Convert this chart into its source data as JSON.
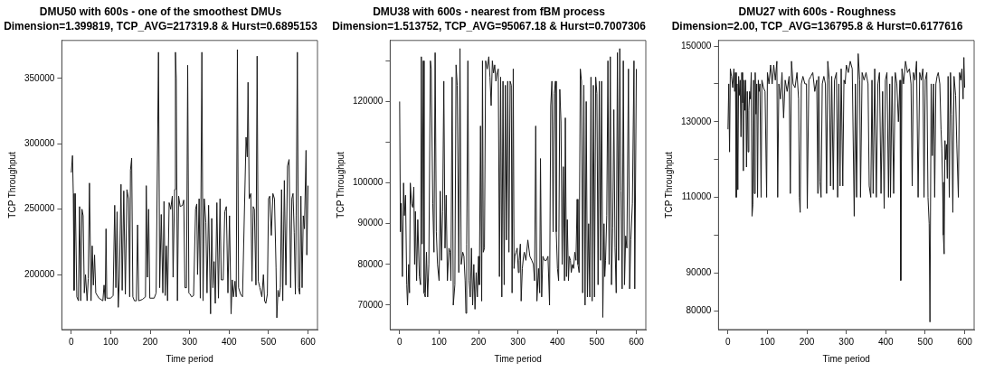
{
  "chart_data": [
    {
      "type": "line",
      "title": "DMU50 with 600s - one of the smoothest DMUs",
      "subtitle": "Dimension=1.399819, TCP_AVG=217319.8 & Hurst=0.6895153",
      "xlabel": "Time period",
      "ylabel": "TCP Throughput",
      "xlim": [
        -24,
        624
      ],
      "xticks": [
        0,
        100,
        200,
        300,
        400,
        500,
        600
      ],
      "ylim": [
        158000,
        379000
      ],
      "yticks": [
        200000,
        250000,
        300000,
        350000
      ],
      "grid": false,
      "legend": false,
      "marker": "none",
      "line_style": "solid",
      "series": [
        {
          "color": "#1a1a1a",
          "x": [
            0,
            3,
            5,
            7,
            10,
            14,
            18,
            21,
            24,
            27,
            30,
            33,
            36,
            40,
            43,
            46,
            50,
            53,
            56,
            59,
            62,
            70,
            80,
            83,
            86,
            88,
            90,
            100,
            106,
            110,
            113,
            116,
            119,
            122,
            126,
            129,
            133,
            137,
            141,
            145,
            148,
            150,
            153,
            156,
            160,
            165,
            168,
            171,
            180,
            188,
            190,
            193,
            196,
            199,
            210,
            215,
            221,
            224,
            228,
            232,
            235,
            238,
            241,
            244,
            248,
            252,
            256,
            258,
            262,
            264,
            266,
            269,
            272,
            276,
            282,
            285,
            288,
            292,
            295,
            298,
            301,
            305,
            310,
            315,
            318,
            320,
            324,
            327,
            331,
            334,
            337,
            341,
            344,
            348,
            353,
            356,
            359,
            362,
            365,
            369,
            373,
            377,
            380,
            385,
            389,
            393,
            397,
            401,
            405,
            408,
            411,
            415,
            418,
            421,
            424,
            429,
            434,
            443,
            446,
            448,
            451,
            455,
            458,
            461,
            464,
            468,
            471,
            474,
            478,
            483,
            487,
            490,
            493,
            497,
            500,
            503,
            507,
            511,
            515,
            519,
            521,
            524,
            527,
            530,
            533,
            536,
            540,
            544,
            548,
            552,
            556,
            559,
            562,
            565,
            568,
            570,
            573,
            576,
            579,
            582,
            585,
            588,
            591,
            595,
            597,
            600
          ],
          "values": [
            278000,
            291000,
            262000,
            188000,
            262000,
            183000,
            180000,
            252000,
            180000,
            250000,
            245000,
            186000,
            200000,
            180000,
            197000,
            270000,
            180000,
            222000,
            192000,
            215000,
            186000,
            182000,
            180000,
            192000,
            180000,
            235000,
            182000,
            182000,
            184000,
            253000,
            190000,
            248000,
            175000,
            198000,
            269000,
            188000,
            264000,
            185000,
            265000,
            258000,
            183000,
            280000,
            289000,
            183000,
            180000,
            180000,
            238000,
            180000,
            181000,
            183000,
            268000,
            198000,
            250000,
            182000,
            182000,
            186000,
            370000,
            190000,
            246000,
            186000,
            256000,
            184000,
            222000,
            180000,
            255000,
            250000,
            260000,
            198000,
            265000,
            370000,
            350000,
            180000,
            260000,
            252000,
            253000,
            257000,
            190000,
            190000,
            360000,
            186000,
            185000,
            183000,
            184000,
            250000,
            254000,
            200000,
            258000,
            182000,
            370000,
            180000,
            258000,
            240000,
            186000,
            253000,
            170000,
            243000,
            190000,
            210000,
            178000,
            255000,
            182000,
            258000,
            196000,
            196000,
            248000,
            252000,
            186000,
            245000,
            170000,
            196000,
            183000,
            195000,
            183000,
            372000,
            190000,
            185000,
            183000,
            305000,
            290000,
            347000,
            258000,
            262000,
            195000,
            252000,
            250000,
            192000,
            367000,
            195000,
            190000,
            183000,
            200000,
            180000,
            178000,
            185000,
            258000,
            260000,
            230000,
            262000,
            258000,
            205000,
            167000,
            188000,
            183000,
            190000,
            265000,
            180000,
            272000,
            192000,
            283000,
            288000,
            190000,
            258000,
            262000,
            232000,
            185000,
            245000,
            370000,
            190000,
            185000,
            260000,
            190000,
            245000,
            235000,
            295000,
            215000,
            268000
          ]
        }
      ]
    },
    {
      "type": "line",
      "title": "DMU38 with 600s - nearest from fBM process",
      "subtitle": "Dimension=1.513752, TCP_AVG=95067.18 & Hurst=0.7007306",
      "xlabel": "Time period",
      "ylabel": "TCP Throughput",
      "xlim": [
        -24,
        624
      ],
      "xticks": [
        0,
        100,
        200,
        300,
        400,
        500,
        600
      ],
      "ylim": [
        64000,
        135000
      ],
      "yticks": [
        70000,
        80000,
        90000,
        100000,
        {
          "value": 110000,
          "label": null
        },
        120000,
        {
          "value": 130000,
          "label": null
        }
      ],
      "grid": false,
      "legend": false,
      "marker": "none",
      "line_style": "solid",
      "series": [
        {
          "color": "#1a1a1a",
          "x": [
            0,
            2,
            4,
            7,
            10,
            12,
            15,
            18,
            20,
            23,
            25,
            27,
            30,
            33,
            36,
            38,
            40,
            43,
            46,
            50,
            53,
            55,
            57,
            60,
            62,
            65,
            68,
            71,
            74,
            78,
            80,
            84,
            87,
            90,
            93,
            96,
            100,
            103,
            106,
            109,
            112,
            115,
            118,
            121,
            125,
            128,
            130,
            133,
            136,
            140,
            143,
            146,
            150,
            153,
            156,
            160,
            163,
            166,
            168,
            170,
            173,
            176,
            179,
            182,
            185,
            188,
            191,
            194,
            197,
            200,
            202,
            205,
            208,
            210,
            212,
            215,
            218,
            222,
            226,
            229,
            232,
            235,
            238,
            241,
            244,
            247,
            250,
            253,
            256,
            259,
            262,
            265,
            268,
            271,
            274,
            277,
            280,
            283,
            285,
            288,
            290,
            292,
            295,
            298,
            301,
            303,
            306,
            308,
            311,
            314,
            316,
            320,
            325,
            330,
            335,
            339,
            342,
            345,
            348,
            352,
            355,
            357,
            360,
            363,
            367,
            372,
            376,
            380,
            383,
            386,
            389,
            392,
            395,
            397,
            400,
            403,
            406,
            409,
            412,
            415,
            418,
            420,
            423,
            425,
            428,
            430,
            433,
            435,
            438,
            441,
            444,
            447,
            450,
            452,
            455,
            458,
            461,
            464,
            467,
            470,
            473,
            476,
            479,
            482,
            485,
            488,
            491,
            494,
            497,
            500,
            503,
            506,
            509,
            512,
            515,
            518,
            520,
            522,
            525,
            528,
            531,
            534,
            537,
            540,
            543,
            546,
            549,
            552,
            555,
            558,
            561,
            564,
            567,
            570,
            573,
            576,
            580,
            583,
            586,
            590,
            594,
            596,
            600
          ],
          "values": [
            120000,
            88000,
            95000,
            77000,
            100000,
            92000,
            97000,
            75000,
            70000,
            80000,
            73000,
            100000,
            95000,
            94000,
            99000,
            80000,
            93000,
            76000,
            91000,
            77000,
            75000,
            131000,
            85000,
            130000,
            73000,
            72000,
            83000,
            72000,
            80000,
            130000,
            128000,
            95000,
            83000,
            132000,
            88000,
            80000,
            76000,
            98000,
            81000,
            93000,
            125000,
            84000,
            97000,
            76000,
            84000,
            83000,
            76000,
            126000,
            70000,
            75000,
            129000,
            124000,
            78000,
            133000,
            80000,
            83000,
            82000,
            76000,
            68000,
            85000,
            130000,
            76000,
            72000,
            84000,
            70000,
            80000,
            69000,
            78000,
            72000,
            82000,
            75000,
            114000,
            71000,
            130000,
            83000,
            84000,
            130000,
            128000,
            131000,
            126000,
            119000,
            130000,
            127000,
            129000,
            125000,
            127000,
            128000,
            77000,
            126000,
            72000,
            125000,
            75000,
            124000,
            86000,
            125000,
            83000,
            125000,
            124000,
            73000,
            128000,
            79000,
            82000,
            83000,
            84000,
            78000,
            81000,
            85000,
            71000,
            79000,
            82000,
            83000,
            81000,
            86000,
            82000,
            81000,
            80000,
            76000,
            114000,
            71000,
            79000,
            73000,
            106000,
            72000,
            82000,
            81000,
            81000,
            82000,
            70000,
            119000,
            125000,
            88000,
            122000,
            125000,
            88000,
            79000,
            76000,
            123000,
            115000,
            80000,
            104000,
            76000,
            116000,
            77000,
            91000,
            76000,
            82000,
            81000,
            78000,
            80000,
            79000,
            83000,
            81000,
            96000,
            80000,
            78000,
            128000,
            125000,
            73000,
            124000,
            70000,
            120000,
            72000,
            90000,
            72000,
            126000,
            71000,
            124000,
            72000,
            126000,
            122000,
            75000,
            125000,
            81000,
            125000,
            67000,
            90000,
            77000,
            81000,
            92000,
            130000,
            80000,
            131000,
            75000,
            89000,
            118000,
            84000,
            73000,
            132000,
            81000,
            133000,
            98000,
            74000,
            130000,
            75000,
            87000,
            84000,
            128000,
            74000,
            86000,
            95000,
            130000,
            74000,
            128000
          ]
        }
      ]
    },
    {
      "type": "line",
      "title": "DMU27 with 600s - Roughness",
      "subtitle": "Dimension=2.00, TCP_AVG=136795.8 & Hurst=0.6177616",
      "xlabel": "Time period",
      "ylabel": "TCP Throughput",
      "xlim": [
        -24,
        624
      ],
      "xticks": [
        0,
        100,
        200,
        300,
        400,
        500,
        600
      ],
      "ylim": [
        75000,
        151500
      ],
      "yticks": [
        80000,
        90000,
        {
          "value": 100000,
          "label": null
        },
        110000,
        {
          "value": 120000,
          "label": null
        },
        130000,
        {
          "value": 140000,
          "label": null
        },
        150000
      ],
      "grid": false,
      "legend": false,
      "marker": "none",
      "line_style": "solid",
      "series": [
        {
          "color": "#1a1a1a",
          "x": [
            0,
            2,
            4,
            6,
            9,
            12,
            15,
            17,
            19,
            21,
            23,
            25,
            27,
            29,
            31,
            33,
            35,
            37,
            39,
            41,
            43,
            45,
            47,
            49,
            51,
            53,
            55,
            57,
            59,
            61,
            63,
            65,
            67,
            69,
            71,
            73,
            75,
            77,
            79,
            81,
            84,
            86,
            90,
            94,
            98,
            100,
            104,
            108,
            112,
            116,
            120,
            124,
            126,
            129,
            133,
            137,
            141,
            145,
            150,
            155,
            158,
            161,
            165,
            170,
            175,
            179,
            181,
            183,
            186,
            190,
            195,
            199,
            201,
            205,
            210,
            215,
            220,
            225,
            228,
            230,
            233,
            236,
            239,
            243,
            247,
            250,
            253,
            257,
            260,
            263,
            267,
            270,
            275,
            278,
            281,
            284,
            287,
            291,
            294,
            297,
            300,
            305,
            310,
            315,
            320,
            323,
            326,
            330,
            334,
            336,
            340,
            345,
            350,
            355,
            358,
            362,
            365,
            368,
            372,
            376,
            380,
            384,
            388,
            392,
            396,
            399,
            403,
            407,
            410,
            412,
            416,
            420,
            424,
            428,
            432,
            436,
            438,
            441,
            445,
            450,
            455,
            460,
            464,
            467,
            470,
            474,
            478,
            482,
            486,
            490,
            494,
            497,
            500,
            504,
            507,
            510,
            512,
            515,
            518,
            521,
            524,
            527,
            530,
            533,
            537,
            540,
            542,
            544,
            546,
            548,
            550,
            552,
            554,
            556,
            558,
            561,
            564,
            567,
            570,
            573,
            577,
            580,
            584,
            587,
            590,
            593,
            596,
            598,
            600
          ],
          "values": [
            128000,
            140000,
            122000,
            144000,
            142000,
            139000,
            144000,
            138000,
            143000,
            110000,
            140000,
            112000,
            142000,
            137000,
            141000,
            126000,
            143000,
            135000,
            117000,
            141000,
            133000,
            141000,
            118000,
            138000,
            122000,
            133000,
            138000,
            136000,
            143000,
            105000,
            108000,
            141000,
            111000,
            143000,
            132000,
            140000,
            110000,
            141000,
            138000,
            140000,
            110000,
            141000,
            139000,
            138000,
            110000,
            143000,
            140000,
            145000,
            140000,
            145000,
            141000,
            146000,
            110000,
            140000,
            136000,
            143000,
            131000,
            141000,
            138000,
            142000,
            111000,
            146000,
            140000,
            139000,
            143000,
            136000,
            110000,
            106000,
            140000,
            142000,
            140000,
            140000,
            107000,
            141000,
            142000,
            143000,
            138000,
            141000,
            111000,
            142000,
            114000,
            110000,
            140000,
            142000,
            140000,
            111000,
            146000,
            141000,
            113000,
            142000,
            112000,
            141000,
            143000,
            110000,
            140000,
            113000,
            144000,
            113000,
            141000,
            140000,
            145000,
            143000,
            146000,
            144000,
            105000,
            140000,
            110000,
            148000,
            141000,
            110000,
            143000,
            141000,
            143000,
            140000,
            113000,
            110000,
            141000,
            111000,
            144000,
            110000,
            140000,
            143000,
            111000,
            138000,
            107000,
            141000,
            143000,
            110000,
            140000,
            110000,
            142000,
            111000,
            143000,
            140000,
            130000,
            141000,
            88000,
            144000,
            140000,
            146000,
            143000,
            144000,
            140000,
            113000,
            143000,
            141000,
            146000,
            110000,
            143000,
            141000,
            144000,
            110000,
            141000,
            143000,
            110000,
            103000,
            77000,
            140000,
            121000,
            140000,
            110000,
            140000,
            142000,
            143000,
            140000,
            128000,
            123000,
            114000,
            100000,
            95000,
            125000,
            120000,
            124000,
            115000,
            142000,
            110000,
            143000,
            132000,
            106000,
            142000,
            137000,
            124000,
            110000,
            143000,
            141000,
            144000,
            136000,
            147000,
            139000
          ]
        }
      ]
    }
  ]
}
